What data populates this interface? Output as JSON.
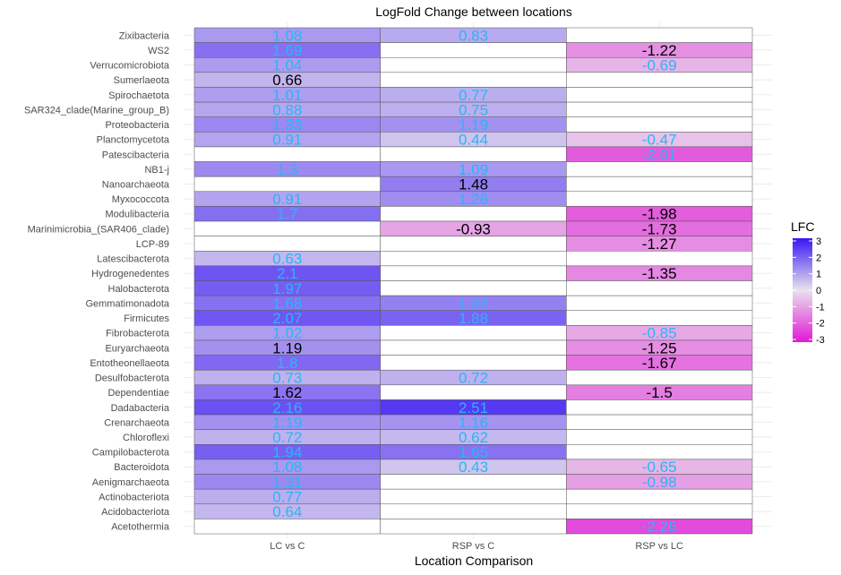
{
  "chart_data": {
    "type": "heatmap",
    "title": "LogFold Change between locations",
    "xlabel": "Location Comparison",
    "ylabel": "",
    "columns": [
      "LC vs C",
      "RSP vs C",
      "RSP vs LC"
    ],
    "rows": [
      "Zixibacteria",
      "WS2",
      "Verrucomicrobiota",
      "Sumerlaeota",
      "Spirochaetota",
      "SAR324_clade(Marine_group_B)",
      "Proteobacteria",
      "Planctomycetota",
      "Patescibacteria",
      "NB1-j",
      "Nanoarchaeota",
      "Myxococcota",
      "Modulibacteria",
      "Marinimicrobia_(SAR406_clade)",
      "LCP-89",
      "Latescibacterota",
      "Hydrogenedentes",
      "Halobacterota",
      "Gemmatimonadota",
      "Firmicutes",
      "Fibrobacterota",
      "Euryarchaeota",
      "Entotheonellaeota",
      "Desulfobacterota",
      "Dependentiae",
      "Dadabacteria",
      "Crenarchaeota",
      "Chloroflexi",
      "Campilobacterota",
      "Bacteroidota",
      "Aenigmarchaeota",
      "Actinobacteriota",
      "Acidobacteriota",
      "Acetothermia"
    ],
    "values": [
      [
        1.08,
        0.83,
        null
      ],
      [
        1.69,
        null,
        -1.22
      ],
      [
        1.04,
        null,
        -0.69
      ],
      [
        0.66,
        null,
        null
      ],
      [
        1.01,
        0.77,
        null
      ],
      [
        0.88,
        0.75,
        null
      ],
      [
        1.33,
        1.19,
        null
      ],
      [
        0.91,
        0.44,
        -0.47
      ],
      [
        null,
        null,
        -2.01
      ],
      [
        1.3,
        1.09,
        null
      ],
      [
        null,
        1.48,
        null
      ],
      [
        0.91,
        1.26,
        null
      ],
      [
        1.7,
        null,
        -1.98
      ],
      [
        null,
        -0.93,
        -1.73
      ],
      [
        null,
        null,
        -1.27
      ],
      [
        0.63,
        null,
        null
      ],
      [
        2.1,
        null,
        -1.35
      ],
      [
        1.97,
        null,
        null
      ],
      [
        1.68,
        1.44,
        null
      ],
      [
        2.07,
        1.88,
        null
      ],
      [
        1.02,
        null,
        -0.85
      ],
      [
        1.19,
        null,
        -1.25
      ],
      [
        1.8,
        null,
        -1.67
      ],
      [
        0.73,
        0.72,
        null
      ],
      [
        1.62,
        null,
        -1.5
      ],
      [
        2.16,
        2.51,
        null
      ],
      [
        1.19,
        1.16,
        null
      ],
      [
        0.72,
        0.62,
        null
      ],
      [
        1.94,
        1.65,
        null
      ],
      [
        1.08,
        0.43,
        -0.65
      ],
      [
        1.31,
        null,
        -0.98
      ],
      [
        0.77,
        null,
        null
      ],
      [
        0.64,
        null,
        null
      ],
      [
        null,
        null,
        -2.26
      ]
    ],
    "label_colors": [
      [
        "#29b6f6",
        "#29b6f6",
        null
      ],
      [
        "#29b6f6",
        null,
        "#000000"
      ],
      [
        "#29b6f6",
        null,
        "#29b6f6"
      ],
      [
        "#000000",
        null,
        null
      ],
      [
        "#29b6f6",
        "#29b6f6",
        null
      ],
      [
        "#29b6f6",
        "#29b6f6",
        null
      ],
      [
        "#29b6f6",
        "#29b6f6",
        null
      ],
      [
        "#29b6f6",
        "#29b6f6",
        "#29b6f6"
      ],
      [
        null,
        null,
        "#29b6f6"
      ],
      [
        "#29b6f6",
        "#29b6f6",
        null
      ],
      [
        null,
        "#000000",
        null
      ],
      [
        "#29b6f6",
        "#29b6f6",
        null
      ],
      [
        "#29b6f6",
        null,
        "#000000"
      ],
      [
        null,
        "#000000",
        "#000000"
      ],
      [
        null,
        null,
        "#000000"
      ],
      [
        "#29b6f6",
        null,
        null
      ],
      [
        "#29b6f6",
        null,
        "#000000"
      ],
      [
        "#29b6f6",
        null,
        null
      ],
      [
        "#29b6f6",
        "#29b6f6",
        null
      ],
      [
        "#29b6f6",
        "#29b6f6",
        null
      ],
      [
        "#29b6f6",
        null,
        "#29b6f6"
      ],
      [
        "#000000",
        null,
        "#000000"
      ],
      [
        "#29b6f6",
        null,
        "#000000"
      ],
      [
        "#29b6f6",
        "#29b6f6",
        null
      ],
      [
        "#000000",
        null,
        "#000000"
      ],
      [
        "#29b6f6",
        "#29b6f6",
        null
      ],
      [
        "#29b6f6",
        "#29b6f6",
        null
      ],
      [
        "#29b6f6",
        "#29b6f6",
        null
      ],
      [
        "#29b6f6",
        "#29b6f6",
        null
      ],
      [
        "#29b6f6",
        "#29b6f6",
        "#29b6f6"
      ],
      [
        "#29b6f6",
        null,
        "#29b6f6"
      ],
      [
        "#29b6f6",
        null,
        null
      ],
      [
        "#29b6f6",
        null,
        null
      ],
      [
        null,
        null,
        "#29b6f6"
      ]
    ],
    "legend": {
      "title": "LFC",
      "position": "right",
      "ticks": [
        "3",
        "2",
        "1",
        "0",
        "-1",
        "-2",
        "-3"
      ],
      "range": [
        -3,
        3
      ],
      "colors": {
        "high": "#3a17f5",
        "mid": "#e8e2ec",
        "low": "#e019d6"
      }
    },
    "na_color": "#ffffff",
    "grid": true
  }
}
